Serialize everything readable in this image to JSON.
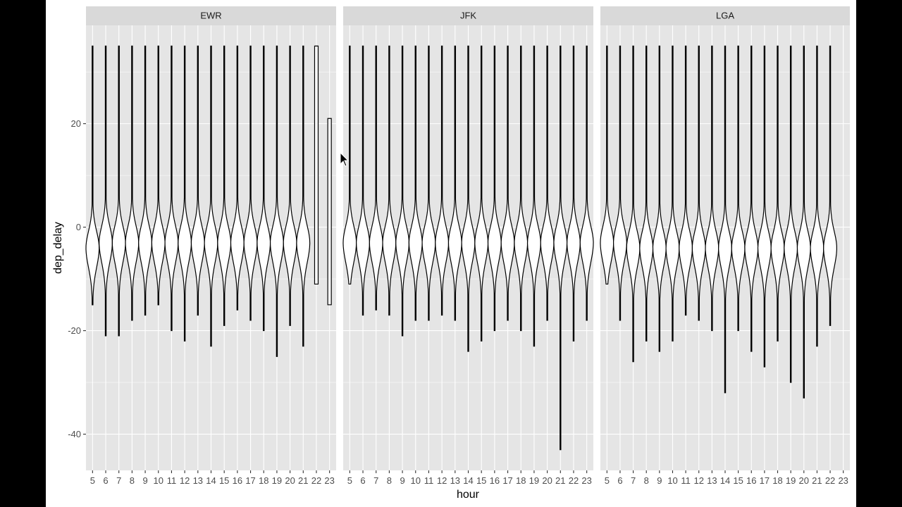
{
  "colors": {
    "background": "#ffffff",
    "panel_background": "#e5e5e5",
    "strip_background": "#d9d9d9",
    "grid": "#ffffff",
    "violin_stroke": "#000000",
    "violin_fill": "#ffffff",
    "tick_text": "#4d4d4d",
    "axis_title": "#000000"
  },
  "chart_data": {
    "type": "violin",
    "xlabel": "hour",
    "ylabel": "dep_delay",
    "x_ticks": [
      "5",
      "6",
      "7",
      "8",
      "9",
      "10",
      "11",
      "12",
      "13",
      "14",
      "15",
      "16",
      "17",
      "18",
      "19",
      "20",
      "21",
      "22",
      "23"
    ],
    "y_ticks": [
      20,
      0,
      -20,
      -40
    ],
    "ylim": [
      -47,
      39
    ],
    "grid": true,
    "facets": [
      {
        "name": "EWR",
        "violins": [
          {
            "hour": 5,
            "max": 35,
            "min": -15,
            "center": -4
          },
          {
            "hour": 6,
            "max": 35,
            "min": -21,
            "center": -3
          },
          {
            "hour": 7,
            "max": 35,
            "min": -21,
            "center": -3
          },
          {
            "hour": 8,
            "max": 35,
            "min": -18,
            "center": -3
          },
          {
            "hour": 9,
            "max": 35,
            "min": -17,
            "center": -3
          },
          {
            "hour": 10,
            "max": 35,
            "min": -15,
            "center": -3
          },
          {
            "hour": 11,
            "max": 35,
            "min": -20,
            "center": -3
          },
          {
            "hour": 12,
            "max": 35,
            "min": -22,
            "center": -3
          },
          {
            "hour": 13,
            "max": 35,
            "min": -17,
            "center": -3
          },
          {
            "hour": 14,
            "max": 35,
            "min": -23,
            "center": -3
          },
          {
            "hour": 15,
            "max": 35,
            "min": -19,
            "center": -3
          },
          {
            "hour": 16,
            "max": 35,
            "min": -16,
            "center": -3
          },
          {
            "hour": 17,
            "max": 35,
            "min": -18,
            "center": -3
          },
          {
            "hour": 18,
            "max": 35,
            "min": -20,
            "center": -3
          },
          {
            "hour": 19,
            "max": 35,
            "min": -25,
            "center": -3
          },
          {
            "hour": 20,
            "max": 35,
            "min": -19,
            "center": -3
          },
          {
            "hour": 21,
            "max": 35,
            "min": -23,
            "center": -3
          },
          {
            "hour": 22,
            "max": 35,
            "min": -11,
            "center": -3,
            "shape": "flat"
          },
          {
            "hour": 23,
            "max": 21,
            "min": -15,
            "center": -3,
            "shape": "flat"
          }
        ]
      },
      {
        "name": "JFK",
        "violins": [
          {
            "hour": 5,
            "max": 35,
            "min": -11,
            "center": -3
          },
          {
            "hour": 6,
            "max": 35,
            "min": -17,
            "center": -3
          },
          {
            "hour": 7,
            "max": 35,
            "min": -16,
            "center": -3
          },
          {
            "hour": 8,
            "max": 35,
            "min": -17,
            "center": -3
          },
          {
            "hour": 9,
            "max": 35,
            "min": -21,
            "center": -3
          },
          {
            "hour": 10,
            "max": 35,
            "min": -18,
            "center": -3
          },
          {
            "hour": 11,
            "max": 35,
            "min": -18,
            "center": -3
          },
          {
            "hour": 12,
            "max": 35,
            "min": -17,
            "center": -3
          },
          {
            "hour": 13,
            "max": 35,
            "min": -18,
            "center": -3
          },
          {
            "hour": 14,
            "max": 35,
            "min": -24,
            "center": -3
          },
          {
            "hour": 15,
            "max": 35,
            "min": -22,
            "center": -3
          },
          {
            "hour": 16,
            "max": 35,
            "min": -20,
            "center": -3
          },
          {
            "hour": 17,
            "max": 35,
            "min": -18,
            "center": -3
          },
          {
            "hour": 18,
            "max": 35,
            "min": -20,
            "center": -3
          },
          {
            "hour": 19,
            "max": 35,
            "min": -23,
            "center": -3
          },
          {
            "hour": 20,
            "max": 35,
            "min": -18,
            "center": -3
          },
          {
            "hour": 21,
            "max": 35,
            "min": -43,
            "center": -3
          },
          {
            "hour": 22,
            "max": 35,
            "min": -22,
            "center": -3
          },
          {
            "hour": 23,
            "max": 35,
            "min": -18,
            "center": -3
          }
        ]
      },
      {
        "name": "LGA",
        "violins": [
          {
            "hour": 5,
            "max": 35,
            "min": -11,
            "center": -3
          },
          {
            "hour": 6,
            "max": 35,
            "min": -18,
            "center": -3
          },
          {
            "hour": 7,
            "max": 35,
            "min": -26,
            "center": -4
          },
          {
            "hour": 8,
            "max": 35,
            "min": -22,
            "center": -4
          },
          {
            "hour": 9,
            "max": 35,
            "min": -24,
            "center": -4
          },
          {
            "hour": 10,
            "max": 35,
            "min": -22,
            "center": -4
          },
          {
            "hour": 11,
            "max": 35,
            "min": -17,
            "center": -4
          },
          {
            "hour": 12,
            "max": 35,
            "min": -18,
            "center": -4
          },
          {
            "hour": 13,
            "max": 35,
            "min": -20,
            "center": -4
          },
          {
            "hour": 14,
            "max": 35,
            "min": -32,
            "center": -4
          },
          {
            "hour": 15,
            "max": 35,
            "min": -20,
            "center": -4
          },
          {
            "hour": 16,
            "max": 35,
            "min": -24,
            "center": -4
          },
          {
            "hour": 17,
            "max": 35,
            "min": -27,
            "center": -4
          },
          {
            "hour": 18,
            "max": 35,
            "min": -22,
            "center": -4
          },
          {
            "hour": 19,
            "max": 35,
            "min": -30,
            "center": -4
          },
          {
            "hour": 20,
            "max": 35,
            "min": -33,
            "center": -4
          },
          {
            "hour": 21,
            "max": 35,
            "min": -23,
            "center": -4
          },
          {
            "hour": 22,
            "max": 35,
            "min": -19,
            "center": -4
          }
        ]
      }
    ]
  }
}
